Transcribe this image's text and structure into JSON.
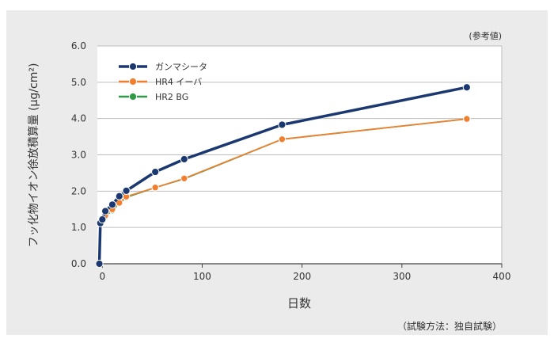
{
  "chart_data": {
    "type": "line",
    "note_top": "(参考値)",
    "note_bottom": "（試験方法：独自試験）",
    "xlabel": "日数",
    "ylabel": "フッ化物イオン徐放積算量 (μg/cm²)",
    "xlim": [
      -5,
      400
    ],
    "ylim": [
      0,
      6
    ],
    "x_ticks": [
      0,
      100,
      200,
      300,
      400
    ],
    "x_tick_labels": [
      "0",
      "100",
      "200",
      "300",
      "400"
    ],
    "y_ticks": [
      0,
      1,
      2,
      3,
      4,
      5,
      6
    ],
    "y_tick_labels": [
      "0.0",
      "1.0",
      "2.0",
      "3.0",
      "4.0",
      "5.0",
      "6.0"
    ],
    "grid": "horizontal",
    "legend_position": "top-left",
    "series": [
      {
        "name": "ガンマシータ",
        "color": "#1b3870",
        "x": [
          -3,
          -2,
          0,
          3,
          10,
          17,
          24,
          53,
          82,
          180,
          365
        ],
        "y": [
          0.0,
          1.12,
          1.22,
          1.45,
          1.63,
          1.86,
          2.01,
          2.53,
          2.88,
          3.83,
          4.86
        ]
      },
      {
        "name": "HR4 イーバ",
        "color": "#f08030",
        "x": [
          -3,
          -2,
          0,
          3,
          10,
          17,
          24,
          53,
          82,
          180,
          365
        ],
        "y": [
          0.0,
          1.1,
          1.2,
          1.33,
          1.5,
          1.68,
          1.85,
          2.1,
          2.35,
          3.43,
          3.99
        ]
      },
      {
        "name": "HR2 BG",
        "color": "#2e9a48",
        "x": [
          -3,
          -2,
          0,
          3,
          10,
          17,
          24,
          53,
          82,
          180,
          365
        ],
        "y": [
          0.0,
          1.08,
          1.18,
          1.3,
          1.47,
          1.66,
          1.83,
          2.1,
          2.34,
          3.43,
          3.99
        ]
      }
    ]
  }
}
